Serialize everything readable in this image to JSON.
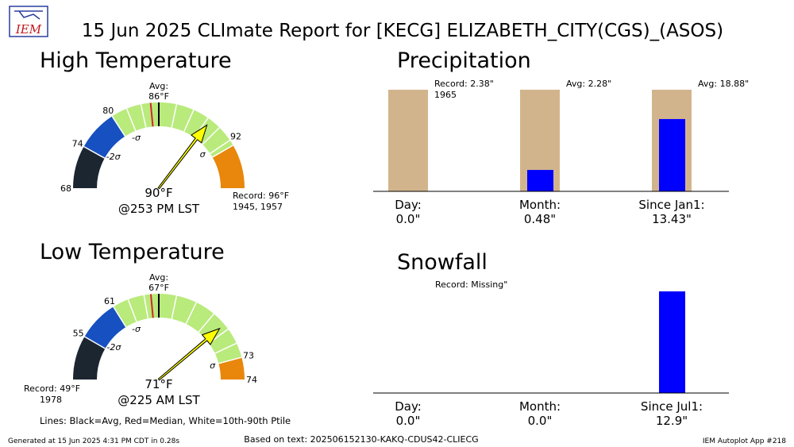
{
  "header": {
    "logo": "IEM",
    "title": "15 Jun 2025 CLImate Report for [KECG] ELIZABETH_CITY(CGS)_(ASOS)"
  },
  "gauges": [
    {
      "title": "High Temperature",
      "avg_label": "Avg:",
      "ticks": [
        68,
        74,
        80,
        {
          "value": 86,
          "label": "86°F"
        },
        92
      ],
      "sigma_labels": [
        "-2σ",
        "-σ",
        "σ"
      ],
      "median": 85,
      "value": 90,
      "value_label": "90°F",
      "time": "@253 PM LST",
      "record_label": "Record: 96°F",
      "record_years": "1945, 1957"
    },
    {
      "title": "Low Temperature",
      "avg_label": "Avg:",
      "ticks": [
        55,
        61,
        {
          "value": 67,
          "label": "67°F"
        },
        73,
        74
      ],
      "sigma_labels": [
        "-2σ",
        "-σ",
        "σ"
      ],
      "median": 66,
      "value": 71,
      "value_label": "71°F",
      "time": "@225 AM LST",
      "record_label": "Record: 49°F",
      "record_years": "1978"
    }
  ],
  "legend": "Lines: Black=Avg, Red=Median, White=10th-90th Ptile",
  "bars": [
    {
      "title": "Precipitation",
      "categories": [
        "Day:",
        "Month:",
        "Since Jan1:"
      ],
      "values": [
        0.0,
        0.48,
        13.43
      ],
      "value_labels": [
        "0.0\"",
        "0.48\"",
        "13.43\""
      ],
      "reference": [
        2.38,
        2.28,
        18.88
      ],
      "reference_labels": [
        "Record: 2.38\"",
        "Avg: 2.28\"",
        "Avg: 18.88\""
      ],
      "record_year": "1965"
    },
    {
      "title": "Snowfall",
      "categories": [
        "Day:",
        "Month:",
        "Since Jul1:"
      ],
      "values": [
        0.0,
        0.0,
        12.9
      ],
      "value_labels": [
        "0.0\"",
        "0.0\"",
        "12.9\""
      ],
      "note": "Record: Missing\""
    }
  ],
  "footer": {
    "left": "Generated at 15 Jun 2025 4:31 PM CDT in 0.28s",
    "center": "Based on text: 202506152130-KAKQ-CDUS42-CLIECG",
    "right": "IEM Autoplot App #218"
  }
}
